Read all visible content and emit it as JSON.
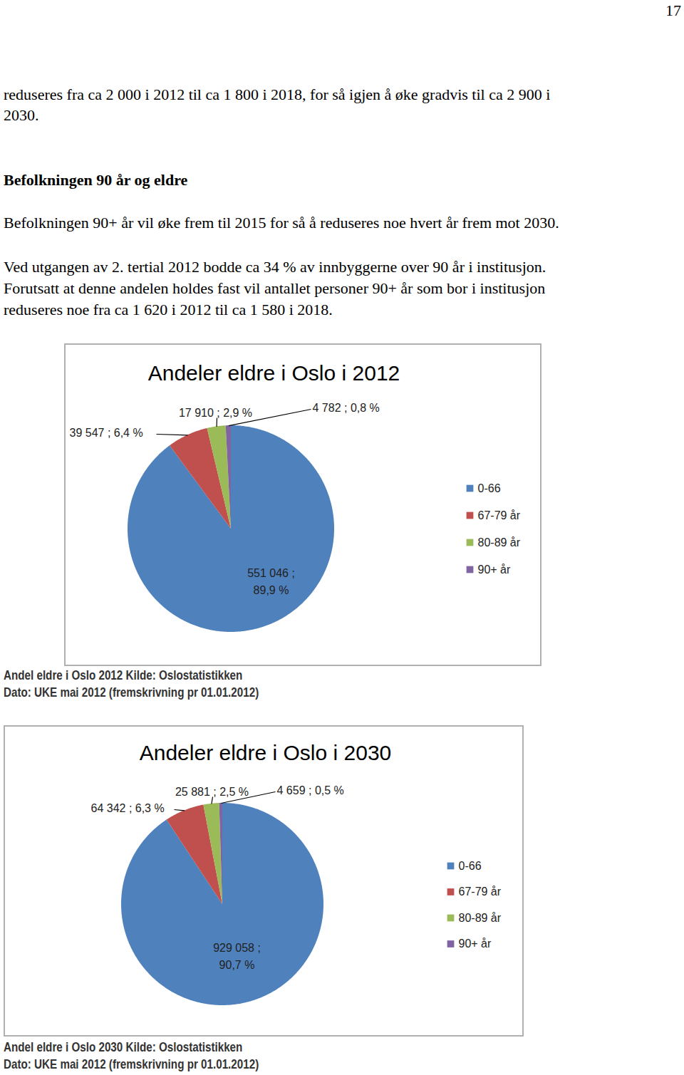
{
  "page_number": "17",
  "blocks": [
    {
      "style": "normal",
      "lines": [
        "reduseres fra ca 2 000 i 2012 til ca 1 800 i 2018, for så igjen å øke gradvis til ca 2 900 i",
        "2030."
      ]
    },
    {
      "style": "bold",
      "lines": [
        "Befolkningen 90 år og eldre"
      ]
    },
    {
      "style": "normal",
      "lines": [
        "Befolkningen 90+ år vil øke frem til 2015 for så å reduseres noe hvert år frem mot 2030."
      ]
    },
    {
      "style": "normal",
      "lines": [
        "Ved utgangen av 2. tertial 2012 bodde ca 34 % av innbyggerne over 90 år i institusjon.",
        "Forutsatt at denne andelen holdes fast vil antallet personer 90+ år som bor i institusjon",
        "reduseres noe fra ca 1 620 i 2012 til ca 1 580 i 2018."
      ]
    }
  ],
  "chart_data": [
    {
      "type": "pie",
      "title": "Andeler eldre i Oslo i 2012",
      "categories": [
        "0-66",
        "67-79 år",
        "80-89 år",
        "90+ år"
      ],
      "values": [
        89.9,
        6.4,
        2.9,
        0.8
      ],
      "value_labels": [
        "551 046 ; 89,9 %",
        "39 547 ; 6,4 %",
        "17 910 ; 2,9 %",
        "4 782 ; 0,8 %"
      ],
      "colors": [
        "#4f81bd",
        "#c0504d",
        "#9bbb59",
        "#8064a2"
      ],
      "data_labels": true,
      "legend": "right",
      "caption": [
        "Andel eldre i Oslo 2012 Kilde: Oslostatistikken",
        "Dato: UKE mai 2012 (fremskrivning pr 01.01.2012)"
      ]
    },
    {
      "type": "pie",
      "title": "Andeler eldre i Oslo i 2030",
      "categories": [
        "0-66",
        "67-79 år",
        "80-89 år",
        "90+ år"
      ],
      "values": [
        90.7,
        6.3,
        2.5,
        0.5
      ],
      "value_labels": [
        "929 058 ; 90,7 %",
        "64 342 ; 6,3 %",
        "25 881 ; 2,5 %",
        "4 659 ; 0,5 %"
      ],
      "colors": [
        "#4f81bd",
        "#c0504d",
        "#9bbb59",
        "#8064a2"
      ],
      "data_labels": true,
      "legend": "right",
      "caption": [
        "Andel eldre i Oslo 2030 Kilde: Oslostatistikken",
        "Dato: UKE mai 2012 (fremskrivning pr 01.01.2012)"
      ]
    }
  ]
}
